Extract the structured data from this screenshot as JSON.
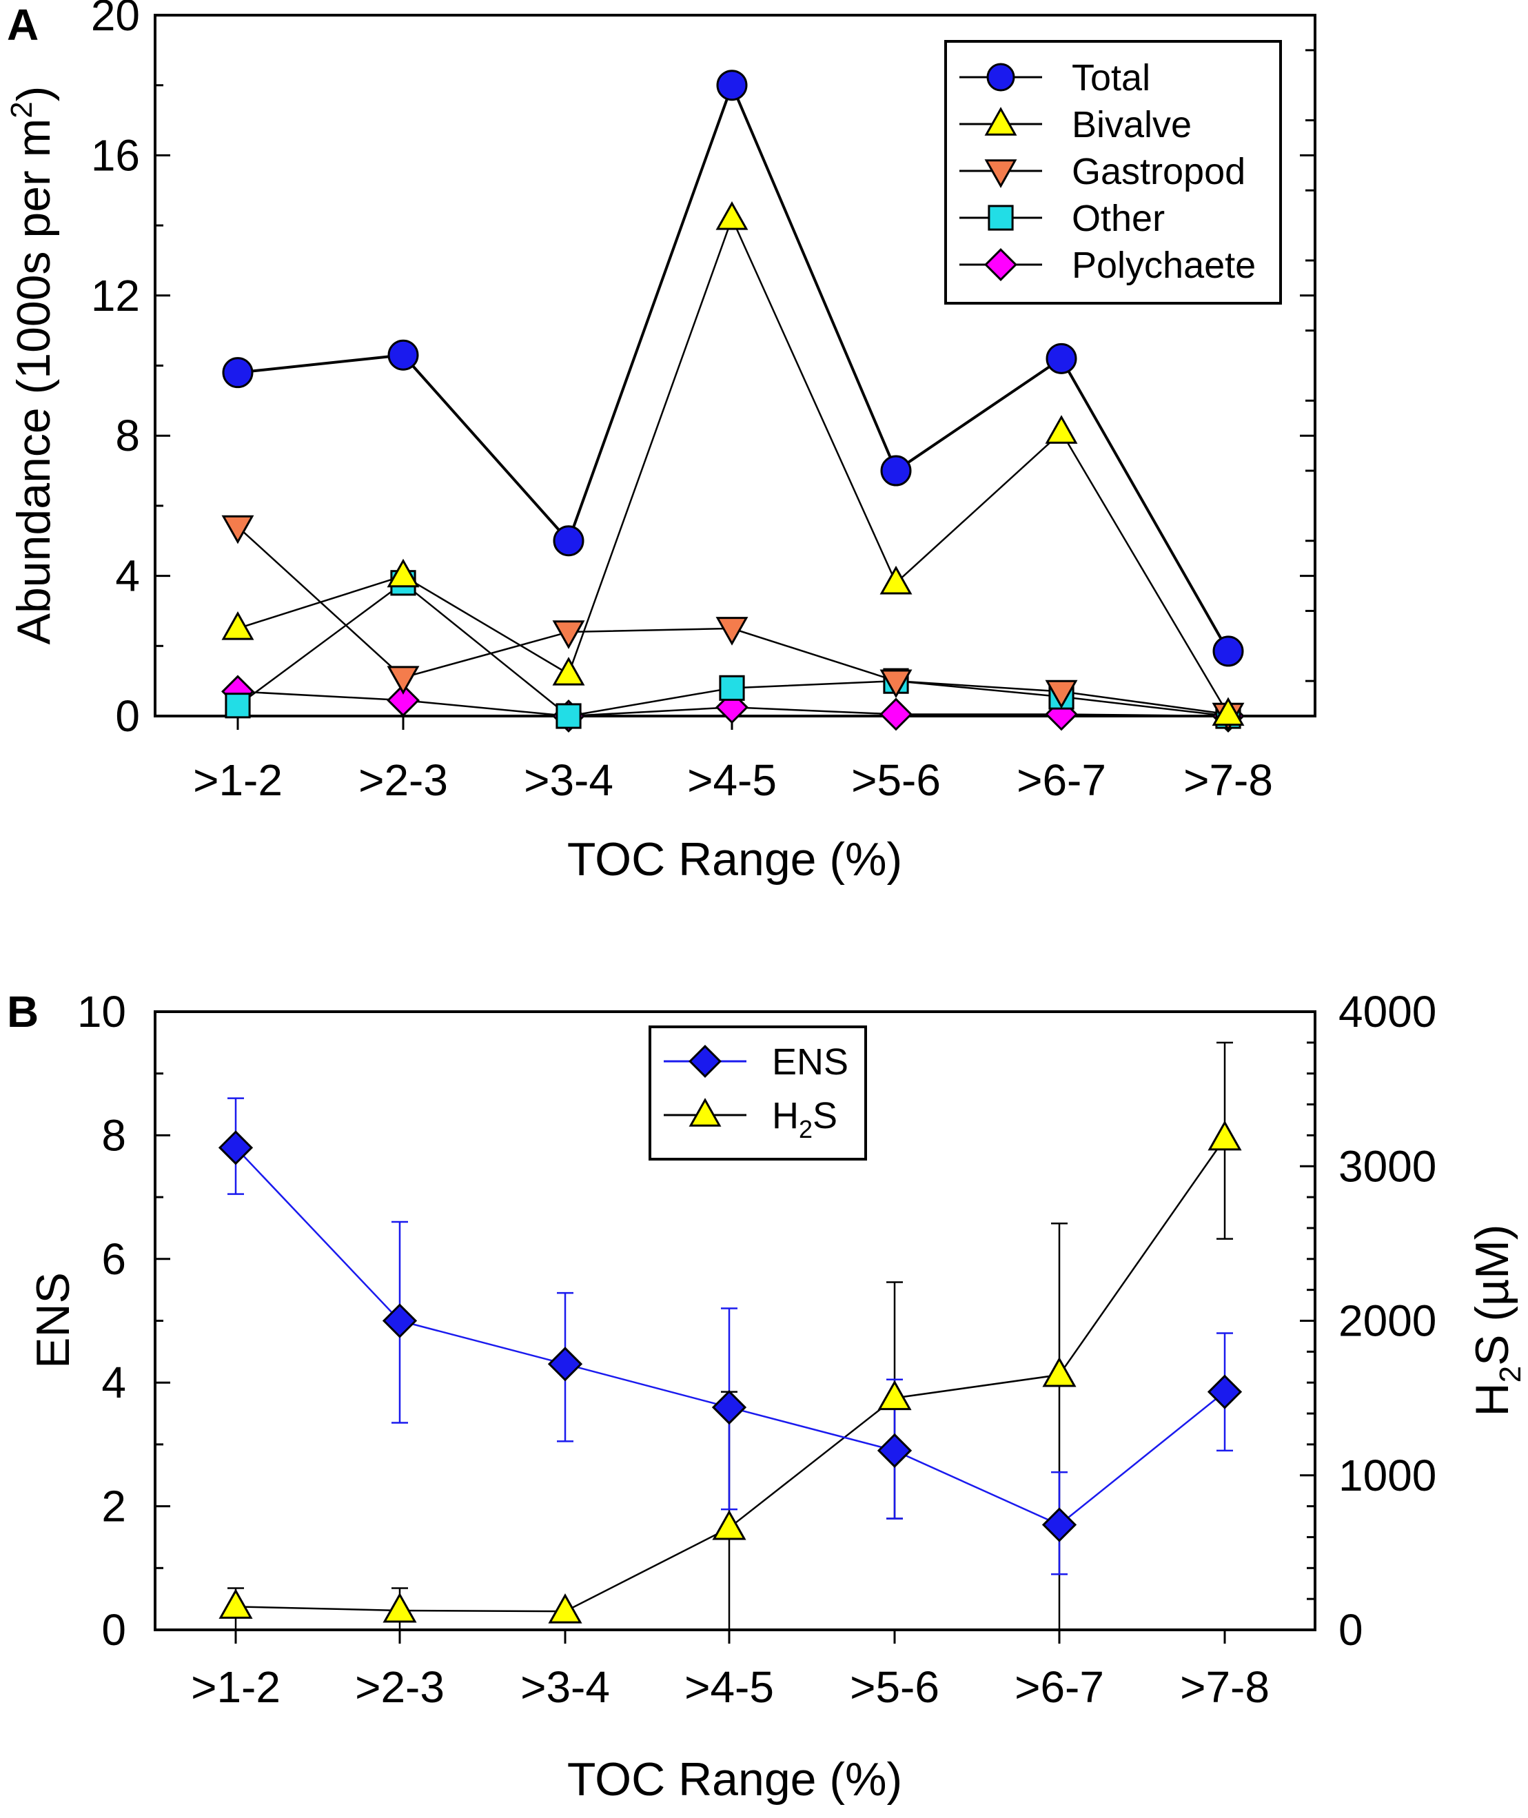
{
  "chart_data": [
    {
      "panel": "A",
      "type": "line",
      "title": "",
      "xlabel": "TOC Range (%)",
      "ylabel": "Abundance (1000s per m2)",
      "ylabel_parts": {
        "main": "Abundance (1000s per m",
        "sup": "2",
        "tail": ")"
      },
      "ylim": [
        0,
        20
      ],
      "yticks": [
        "0",
        "4",
        "8",
        "12",
        "16",
        "20"
      ],
      "categories": [
        ">1-2",
        ">2-3",
        ">3-4",
        ">4-5",
        ">5-6",
        ">6-7",
        ">7-8"
      ],
      "legend_position": "top-right",
      "series": [
        {
          "name": "Total",
          "marker": "circle",
          "color": "#1a1aee",
          "values": [
            9.8,
            10.3,
            5.0,
            18.0,
            7.0,
            10.2,
            1.85
          ]
        },
        {
          "name": "Bivalve",
          "marker": "triangle-up",
          "color": "#ffff00",
          "values": [
            2.5,
            4.0,
            1.2,
            14.2,
            3.8,
            8.1,
            0.05
          ]
        },
        {
          "name": "Gastropod",
          "marker": "triangle-down",
          "color": "#f47c4c",
          "values": [
            5.4,
            1.1,
            2.4,
            2.5,
            1.0,
            0.7,
            0.05
          ]
        },
        {
          "name": "Other",
          "marker": "square",
          "color": "#22dde6",
          "values": [
            0.3,
            3.8,
            0.0,
            0.8,
            1.0,
            0.55,
            0.0
          ]
        },
        {
          "name": "Polychaete",
          "marker": "diamond",
          "color": "#ff00ff",
          "values": [
            0.7,
            0.45,
            0.0,
            0.25,
            0.05,
            0.05,
            0.0
          ]
        }
      ]
    },
    {
      "panel": "B",
      "type": "line",
      "title": "",
      "xlabel": "TOC Range (%)",
      "ylabel": "ENS",
      "y2label": "H2S (µM)",
      "y2label_parts": {
        "main": "H",
        "sub": "2",
        "tail": "S (µM)"
      },
      "ylim": [
        0,
        10
      ],
      "yticks": [
        "0",
        "2",
        "4",
        "6",
        "8",
        "10"
      ],
      "y2lim": [
        0,
        4000
      ],
      "y2ticks": [
        "0",
        "1000",
        "2000",
        "3000",
        "4000"
      ],
      "categories": [
        ">1-2",
        ">2-3",
        ">3-4",
        ">4-5",
        ">5-6",
        ">6-7",
        ">7-8"
      ],
      "legend_position": "top-center",
      "series": [
        {
          "name": "ENS",
          "axis": "left",
          "marker": "diamond",
          "color": "#1a1aee",
          "line_color": "#1a1aee",
          "values": [
            7.8,
            5.0,
            4.3,
            3.6,
            2.9,
            1.7,
            3.85
          ],
          "err_low": [
            7.05,
            3.35,
            3.05,
            1.95,
            1.8,
            0.9,
            2.9
          ],
          "err_high": [
            8.6,
            6.6,
            5.45,
            5.2,
            4.05,
            2.55,
            4.8
          ]
        },
        {
          "name": "H2S",
          "name_parts": {
            "main": "H",
            "sub": "2",
            "tail": "S"
          },
          "axis": "right",
          "marker": "triangle-up",
          "color": "#ffff00",
          "line_color": "#000000",
          "values": [
            150,
            125,
            120,
            660,
            1500,
            1650,
            3180
          ],
          "err_low": [
            0,
            0,
            120,
            0,
            720,
            0,
            2530
          ],
          "err_high": [
            270,
            270,
            120,
            1540,
            2250,
            2630,
            3800
          ]
        }
      ]
    }
  ]
}
